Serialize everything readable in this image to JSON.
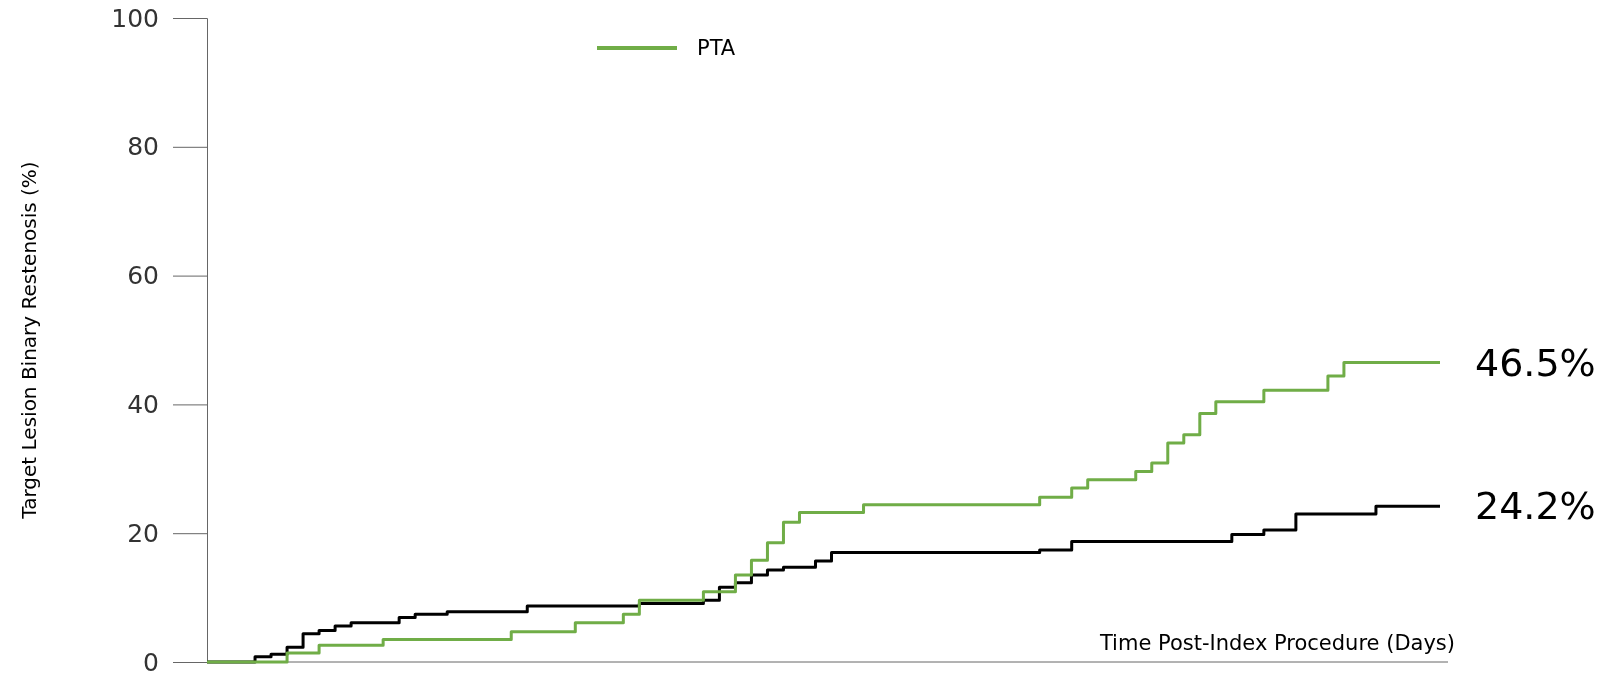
{
  "chart_data": {
    "type": "step",
    "ylabel": "Target Lesion Binary Restenosis (%)",
    "xlabel": "Time Post-Index Procedure (Days)",
    "categories": [
      null,
      null,
      null,
      null,
      null,
      null,
      null,
      null,
      null,
      null,
      null,
      null,
      null,
      null,
      null,
      null,
      null,
      null,
      null,
      null,
      null,
      null,
      null,
      null,
      null,
      null,
      null,
      null,
      null,
      null,
      null,
      null,
      null,
      null,
      null,
      null,
      null,
      null,
      null,
      null,
      null,
      null,
      null,
      null,
      null,
      null,
      null,
      null,
      null,
      null,
      null,
      null,
      null,
      null,
      null,
      null,
      null,
      null,
      null,
      null,
      null,
      null,
      null,
      null,
      null,
      null,
      null,
      null,
      null,
      null,
      null,
      null,
      null,
      null,
      null,
      null,
      null,
      null
    ],
    "ylim": [
      0,
      100
    ],
    "yticks": [
      0,
      20,
      40,
      60,
      80,
      100
    ],
    "grid": false,
    "legend": "top left",
    "line_style": "solid",
    "marker": "none",
    "series": [
      {
        "color": "#000000",
        "values": [
          0,
          0,
          0,
          0.8,
          1.2,
          2.3,
          4.4,
          4.9,
          5.6,
          6.1,
          6.1,
          6.1,
          6.9,
          7.4,
          7.4,
          7.8,
          7.8,
          7.8,
          7.8,
          7.8,
          8.7,
          8.7,
          8.7,
          8.7,
          8.7,
          8.7,
          8.7,
          9.1,
          9.1,
          9.1,
          9.1,
          9.6,
          11.6,
          12.3,
          13.5,
          14.3,
          14.7,
          14.7,
          15.7,
          17.0,
          17.0,
          17.0,
          17.0,
          17.0,
          17.0,
          17.0,
          17.0,
          17.0,
          17.0,
          17.0,
          17.0,
          17.0,
          17.4,
          17.4,
          18.7,
          18.7,
          18.7,
          18.7,
          18.7,
          18.7,
          18.7,
          18.7,
          18.7,
          18.7,
          19.8,
          19.8,
          20.5,
          20.5,
          23.0,
          23.0,
          23.0,
          23.0,
          23.0,
          24.2,
          24.2,
          24.2,
          24.2,
          24.2
        ]
      },
      {
        "name": "PTA",
        "color": "#70ad47",
        "values": [
          0,
          0,
          0,
          0,
          0,
          1.4,
          1.4,
          2.6,
          2.6,
          2.6,
          2.6,
          3.5,
          3.5,
          3.5,
          3.5,
          3.5,
          3.5,
          3.5,
          3.5,
          4.7,
          4.7,
          4.7,
          4.7,
          6.1,
          6.1,
          6.1,
          7.4,
          9.6,
          9.6,
          9.6,
          9.6,
          10.9,
          10.9,
          13.5,
          15.8,
          18.5,
          21.7,
          23.2,
          23.2,
          23.2,
          23.2,
          24.4,
          24.4,
          24.4,
          24.4,
          24.4,
          24.4,
          24.4,
          24.4,
          24.4,
          24.4,
          24.4,
          25.6,
          25.6,
          27.0,
          28.3,
          28.3,
          28.3,
          29.6,
          30.9,
          34.0,
          35.3,
          38.6,
          40.4,
          40.4,
          40.4,
          42.2,
          42.2,
          42.2,
          42.2,
          44.4,
          46.5,
          46.5,
          46.5,
          46.5,
          46.5,
          46.5,
          46.5
        ]
      }
    ],
    "annotations": [
      "46.5%",
      "24.2%"
    ]
  }
}
